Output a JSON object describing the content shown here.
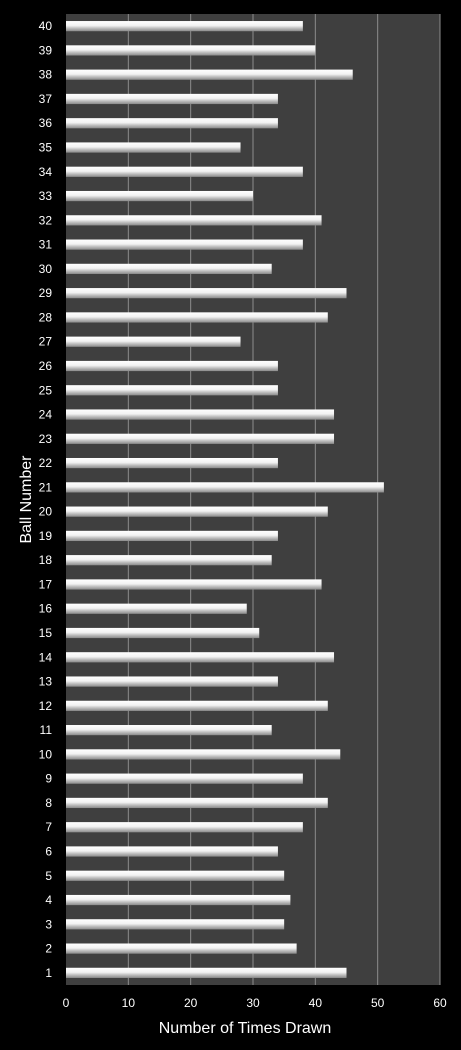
{
  "chart_data": {
    "type": "bar",
    "orientation": "horizontal",
    "title": "",
    "xlabel": "Number of Times Drawn",
    "ylabel": "Ball Number",
    "xlim": [
      0,
      60
    ],
    "x_ticks": [
      0,
      10,
      20,
      30,
      40,
      50,
      60
    ],
    "grid": "vertical",
    "legend": "none",
    "colors": {
      "background": "#000000",
      "plot_area": "#3f3f3f",
      "bar": "#e6e6e6",
      "gridline": "#8c8c8c",
      "text": "#ffffff"
    },
    "categories": [
      "1",
      "2",
      "3",
      "4",
      "5",
      "6",
      "7",
      "8",
      "9",
      "10",
      "11",
      "12",
      "13",
      "14",
      "15",
      "16",
      "17",
      "18",
      "19",
      "20",
      "21",
      "22",
      "23",
      "24",
      "25",
      "26",
      "27",
      "28",
      "29",
      "30",
      "31",
      "32",
      "33",
      "34",
      "35",
      "36",
      "37",
      "38",
      "39",
      "40"
    ],
    "values": [
      45,
      37,
      35,
      36,
      35,
      34,
      38,
      42,
      38,
      44,
      33,
      42,
      34,
      43,
      31,
      29,
      41,
      33,
      34,
      42,
      51,
      34,
      43,
      43,
      34,
      34,
      28,
      42,
      45,
      33,
      38,
      41,
      30,
      38,
      28,
      34,
      34,
      46,
      40,
      38
    ]
  }
}
